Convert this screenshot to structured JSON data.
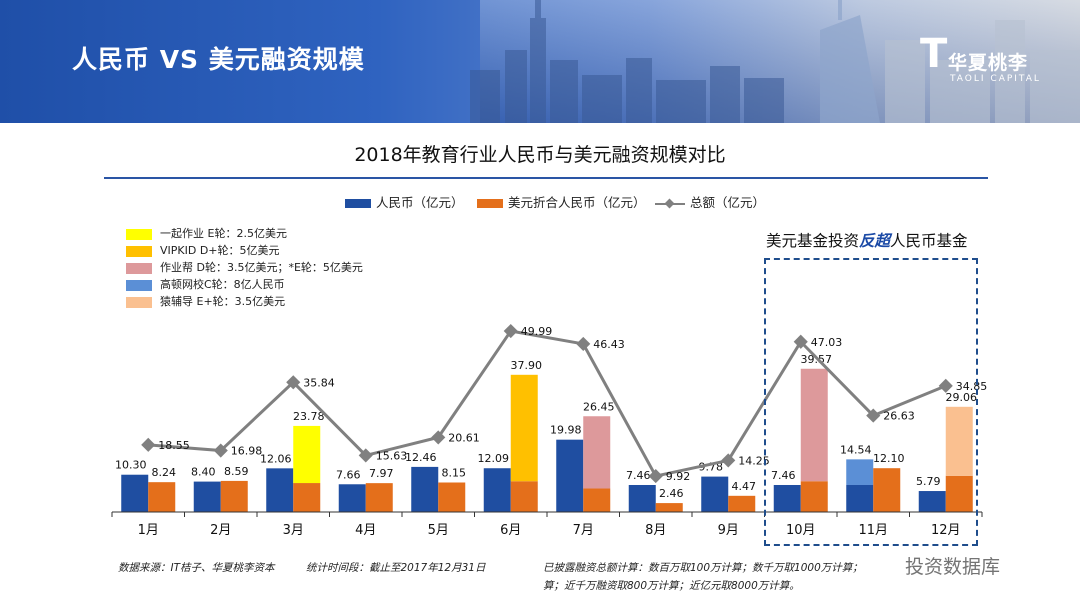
{
  "header": {
    "title": "人民币 VS 美元融资规模",
    "logo_mark": "T",
    "logo_cn": "华夏桃李",
    "logo_en": "TAOLI CAPITAL"
  },
  "chart_data": {
    "type": "bar",
    "title": "2018年教育行业人民币与美元融资规模对比",
    "categories": [
      "1月",
      "2月",
      "3月",
      "4月",
      "5月",
      "6月",
      "7月",
      "8月",
      "9月",
      "10月",
      "11月",
      "12月"
    ],
    "series": [
      {
        "name": "人民币（亿元）",
        "kind": "bar",
        "color": "#1f4ea1",
        "values": [
          10.3,
          8.4,
          12.06,
          7.66,
          12.46,
          12.09,
          19.98,
          7.46,
          9.78,
          7.46,
          14.54,
          5.79
        ]
      },
      {
        "name": "美元折合人民币（亿元）",
        "kind": "bar",
        "color": "#e46f1b",
        "values": [
          8.24,
          8.59,
          23.78,
          7.97,
          8.15,
          37.9,
          26.45,
          2.46,
          4.47,
          39.57,
          12.1,
          29.06
        ],
        "base_part": [
          8.24,
          8.59,
          8.0,
          7.97,
          8.15,
          8.5,
          6.5,
          2.46,
          4.47,
          8.5,
          12.1,
          10.0
        ]
      },
      {
        "name": "总额（亿元）",
        "kind": "line",
        "color": "#808080",
        "values": [
          18.55,
          16.98,
          35.84,
          15.63,
          20.61,
          49.99,
          46.43,
          9.92,
          14.25,
          47.03,
          26.63,
          34.85
        ]
      }
    ],
    "highlights": [
      {
        "category_index": 2,
        "series_index": 1,
        "color": "#ffff00",
        "label_index": 0
      },
      {
        "category_index": 5,
        "series_index": 1,
        "color": "#ffc000",
        "label_index": 1
      },
      {
        "category_index": 6,
        "series_index": 1,
        "color": "#dd999b",
        "label_index": 2
      },
      {
        "category_index": 9,
        "series_index": 1,
        "color": "#dd999b",
        "label_index": 2
      },
      {
        "category_index": 10,
        "series_index": 0,
        "color": "#5b8fd6",
        "label_index": 3
      },
      {
        "category_index": 11,
        "series_index": 1,
        "color": "#fac090",
        "label_index": 4
      }
    ],
    "ylim": [
      0,
      52
    ],
    "legend_position": "top-center",
    "grid": false
  },
  "rounds_legend": [
    {
      "label": "一起作业 E轮：2.5亿美元",
      "color": "#ffff00"
    },
    {
      "label": "VIPKID D+轮：5亿美元",
      "color": "#ffc000"
    },
    {
      "label": "作业帮 D轮：3.5亿美元；*E轮：5亿美元",
      "color": "#dd999b"
    },
    {
      "label": "高顿网校C轮：8亿人民币",
      "color": "#5b8fd6"
    },
    {
      "label": "猿辅导 E+轮：3.5亿美元",
      "color": "#fac090"
    }
  ],
  "callout": {
    "prefix": "美元基金投资",
    "highlight": "反超",
    "suffix": "人民币基金"
  },
  "footer": {
    "source": "数据来源：IT桔子、华夏桃李资本",
    "period": "统计时间段：截止至2017年12月31日",
    "note1": "已披露融资总额计算：数百万取100万计算；数千万取1000万计算；",
    "note2": "算；近千万融资取800万计算；近亿元取8000万计算。"
  },
  "watermark": "投资数据库"
}
